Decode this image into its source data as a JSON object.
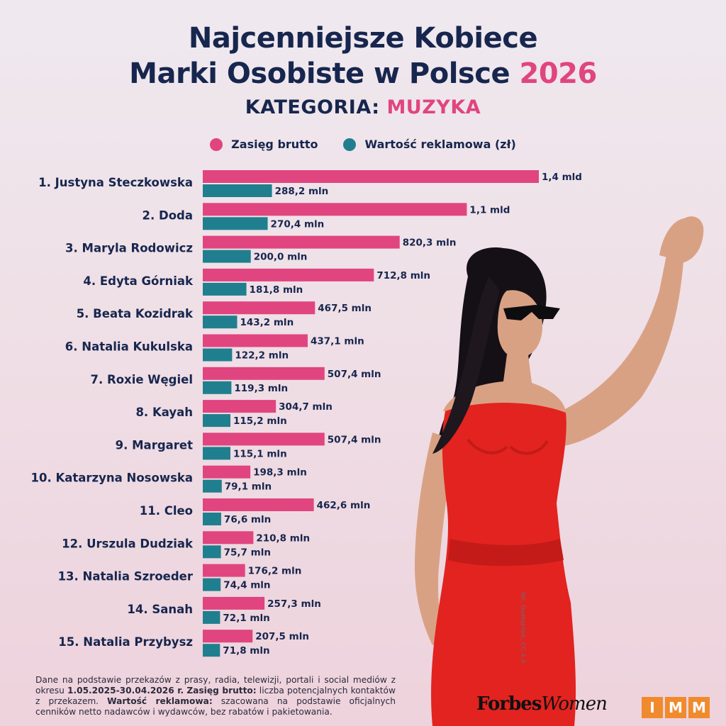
{
  "header": {
    "title_line1": "Najcenniejsze Kobiece",
    "title_line2_main": "Marki Osobiste w Polsce",
    "title_line2_year": "2026",
    "subtitle_main": "KATEGORIA:",
    "subtitle_accent": "MUZYKA"
  },
  "colors": {
    "reach": "#e0457f",
    "value": "#1f7f8e",
    "navy": "#17264e"
  },
  "chart_data": {
    "type": "bar",
    "orientation": "horizontal",
    "legend_position": "top",
    "grid": false,
    "categories": [
      "1. Justyna Steczkowska",
      "2. Doda",
      "3. Maryla Rodowicz",
      "4. Edyta Górniak",
      "5. Beata Kozidrak",
      "6. Natalia Kukulska",
      "7. Roxie Węgiel",
      "8. Kayah",
      "9. Margaret",
      "10. Katarzyna Nosowska",
      "11. Cleo",
      "12. Urszula Dudziak",
      "13. Natalia Szroeder",
      "14. Sanah",
      "15. Natalia Przybysz"
    ],
    "series": [
      {
        "name": "Zasięg brutto",
        "values": [
          1400,
          1100,
          820.3,
          712.8,
          467.5,
          437.1,
          507.4,
          304.7,
          507.4,
          198.3,
          462.6,
          210.8,
          176.2,
          257.3,
          207.5
        ],
        "labels": [
          "1,4 mld",
          "1,1 mld",
          "820,3 mln",
          "712,8 mln",
          "467,5 mln",
          "437,1 mln",
          "507,4 mln",
          "304,7 mln",
          "507,4 mln",
          "198,3 mln",
          "462,6 mln",
          "210,8 mln",
          "176,2 mln",
          "257,3 mln",
          "207,5 mln"
        ]
      },
      {
        "name": "Wartość reklamowa (zł)",
        "values": [
          288.2,
          270.4,
          200.0,
          181.8,
          143.2,
          122.2,
          119.3,
          115.2,
          115.1,
          79.1,
          76.6,
          75.7,
          74.4,
          72.1,
          71.8
        ],
        "labels": [
          "288,2 mln",
          "270,4 mln",
          "200,0 mln",
          "181,8 mln",
          "143,2 mln",
          "122,2 mln",
          "119,3 mln",
          "115,2 mln",
          "115,1 mln",
          "79,1 mln",
          "76,6 mln",
          "75,7 mln",
          "74,4 mln",
          "72,1 mln",
          "71,8 mln"
        ]
      }
    ]
  },
  "photo": {
    "credit": "fot. Quelajrtee, CC 4.0"
  },
  "footnote": {
    "p1": "Dane na podstawie przekazów z prasy, radia, telewizji, portali i social mediów z okresu ",
    "period": "1.05.2025-30.04.2026 r.",
    "reach_term": "Zasięg brutto:",
    "reach_def": " liczba potencjalnych kontaktów z przekazem. ",
    "value_term": "Wartość reklamowa:",
    "value_def": " szacowana na podstawie oficjalnych cenników netto nadawców i wydawców, bez rabatów i pakietowania."
  },
  "logos": {
    "forbes_main": "Forbes",
    "forbes_italic": "Women",
    "imm_letters": [
      "I",
      "M",
      "M"
    ]
  }
}
